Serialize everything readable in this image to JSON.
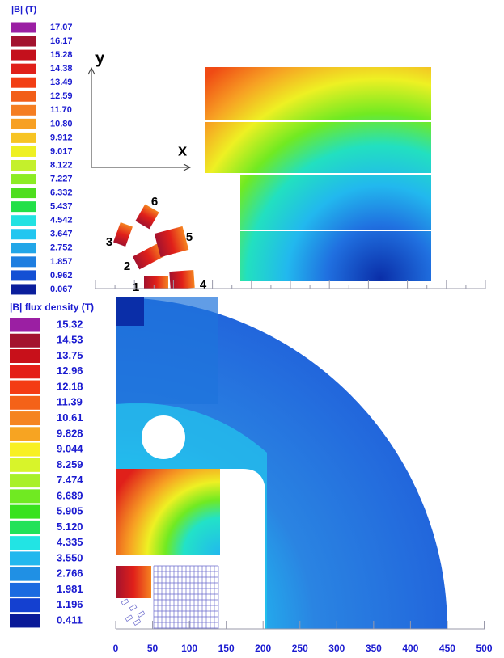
{
  "top_panel": {
    "legend_title": "|B|  (T)",
    "legend_levels": [
      {
        "label": "17.07",
        "color": "#9b1fa3"
      },
      {
        "label": "16.17",
        "color": "#a3122e"
      },
      {
        "label": "15.28",
        "color": "#c4101c"
      },
      {
        "label": "14.38",
        "color": "#e0201a"
      },
      {
        "label": "13.49",
        "color": "#f23e14"
      },
      {
        "label": "12.59",
        "color": "#f25e18"
      },
      {
        "label": "11.70",
        "color": "#f57e22"
      },
      {
        "label": "10.80",
        "color": "#f7a023"
      },
      {
        "label": "9.912",
        "color": "#f7c423"
      },
      {
        "label": "9.017",
        "color": "#eef023"
      },
      {
        "label": "8.122",
        "color": "#c4f02c"
      },
      {
        "label": "7.227",
        "color": "#8cec24"
      },
      {
        "label": "6.332",
        "color": "#4ede1e"
      },
      {
        "label": "5.437",
        "color": "#22e048"
      },
      {
        "label": "4.542",
        "color": "#22e2e2"
      },
      {
        "label": "3.647",
        "color": "#22c6f0"
      },
      {
        "label": "2.752",
        "color": "#22a6e8"
      },
      {
        "label": "1.857",
        "color": "#1e7ee0"
      },
      {
        "label": "0.962",
        "color": "#1450d4"
      },
      {
        "label": "0.067",
        "color": "#0a1e9c"
      }
    ],
    "axis_labels": {
      "y": "y",
      "x": "x"
    },
    "coil_labels": [
      "1",
      "2",
      "3",
      "4",
      "5",
      "6"
    ]
  },
  "bottom_panel": {
    "legend_title": "|B| flux density (T)",
    "legend_levels": [
      {
        "label": "15.32",
        "color": "#9b1fa3"
      },
      {
        "label": "14.53",
        "color": "#a3122e"
      },
      {
        "label": "13.75",
        "color": "#c8101a"
      },
      {
        "label": "12.96",
        "color": "#e41e18"
      },
      {
        "label": "12.18",
        "color": "#f43c14"
      },
      {
        "label": "11.39",
        "color": "#f46218"
      },
      {
        "label": "10.61",
        "color": "#f58420"
      },
      {
        "label": "9.828",
        "color": "#f7a422"
      },
      {
        "label": "9.044",
        "color": "#f8f022"
      },
      {
        "label": "8.259",
        "color": "#d8f42a"
      },
      {
        "label": "7.474",
        "color": "#a8f028"
      },
      {
        "label": "6.689",
        "color": "#70ea22"
      },
      {
        "label": "5.905",
        "color": "#38e21e"
      },
      {
        "label": "5.120",
        "color": "#22e25a"
      },
      {
        "label": "4.335",
        "color": "#22e4e4"
      },
      {
        "label": "3.550",
        "color": "#22b8ee"
      },
      {
        "label": "2.766",
        "color": "#2090e4"
      },
      {
        "label": "1.981",
        "color": "#1c6ae0"
      },
      {
        "label": "1.196",
        "color": "#1440d0"
      },
      {
        "label": "0.411",
        "color": "#0a1a98"
      }
    ],
    "x_ticks": [
      0,
      50,
      100,
      150,
      200,
      250,
      300,
      350,
      400,
      450,
      500
    ]
  }
}
